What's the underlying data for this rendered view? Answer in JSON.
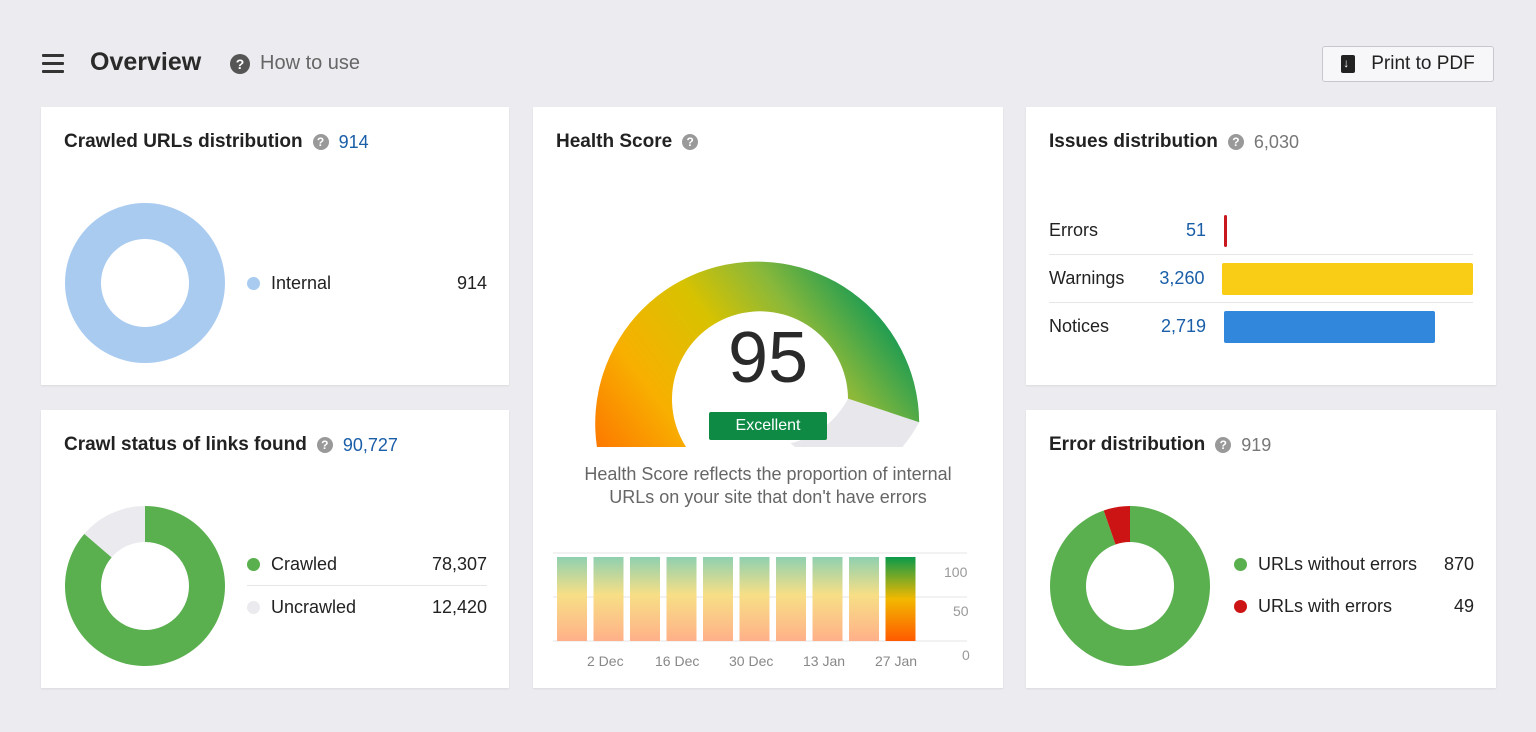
{
  "header": {
    "title": "Overview",
    "help_label": "How to use",
    "print_label": "Print to PDF",
    "menu_icon": "hamburger-icon",
    "help_icon": "question-circle-icon",
    "print_icon": "pdf-download-icon"
  },
  "crawled_urls": {
    "title": "Crawled URLs distribution",
    "total": "914",
    "items": [
      {
        "label": "Internal",
        "value": "914",
        "color": "#a9cbf0",
        "share": 1.0
      }
    ]
  },
  "crawl_status": {
    "title": "Crawl status of links found",
    "total": "90,727",
    "items": [
      {
        "label": "Crawled",
        "value": "78,307",
        "color": "#5aaf4f",
        "share": 0.863
      },
      {
        "label": "Uncrawled",
        "value": "12,420",
        "color": "#ebebef",
        "share": 0.137
      }
    ]
  },
  "health_score": {
    "title": "Health Score",
    "score": "95",
    "rating": "Excellent",
    "description_line1": "Health Score reflects the proportion of internal",
    "description_line2": "URLs on your site that don't have errors",
    "history_x_labels": [
      "2 Dec",
      "16 Dec",
      "30 Dec",
      "13 Jan",
      "27 Jan"
    ],
    "history_y_labels": [
      "100",
      "50",
      "0"
    ],
    "history_bar_count": 10
  },
  "issues": {
    "title": "Issues distribution",
    "total": "6,030",
    "items": [
      {
        "label": "Errors",
        "value": "51",
        "color": "#c8181e",
        "count": 51
      },
      {
        "label": "Warnings",
        "value": "3,260",
        "color": "#f9cc16",
        "count": 3260
      },
      {
        "label": "Notices",
        "value": "2,719",
        "color": "#3187db",
        "count": 2719
      }
    ]
  },
  "error_distribution": {
    "title": "Error distribution",
    "total": "919",
    "items": [
      {
        "label": "URLs without errors",
        "value": "870",
        "color": "#5aaf4f",
        "share": 0.9467
      },
      {
        "label": "URLs with errors",
        "value": "49",
        "color": "#cc1414",
        "share": 0.0533
      }
    ]
  }
}
